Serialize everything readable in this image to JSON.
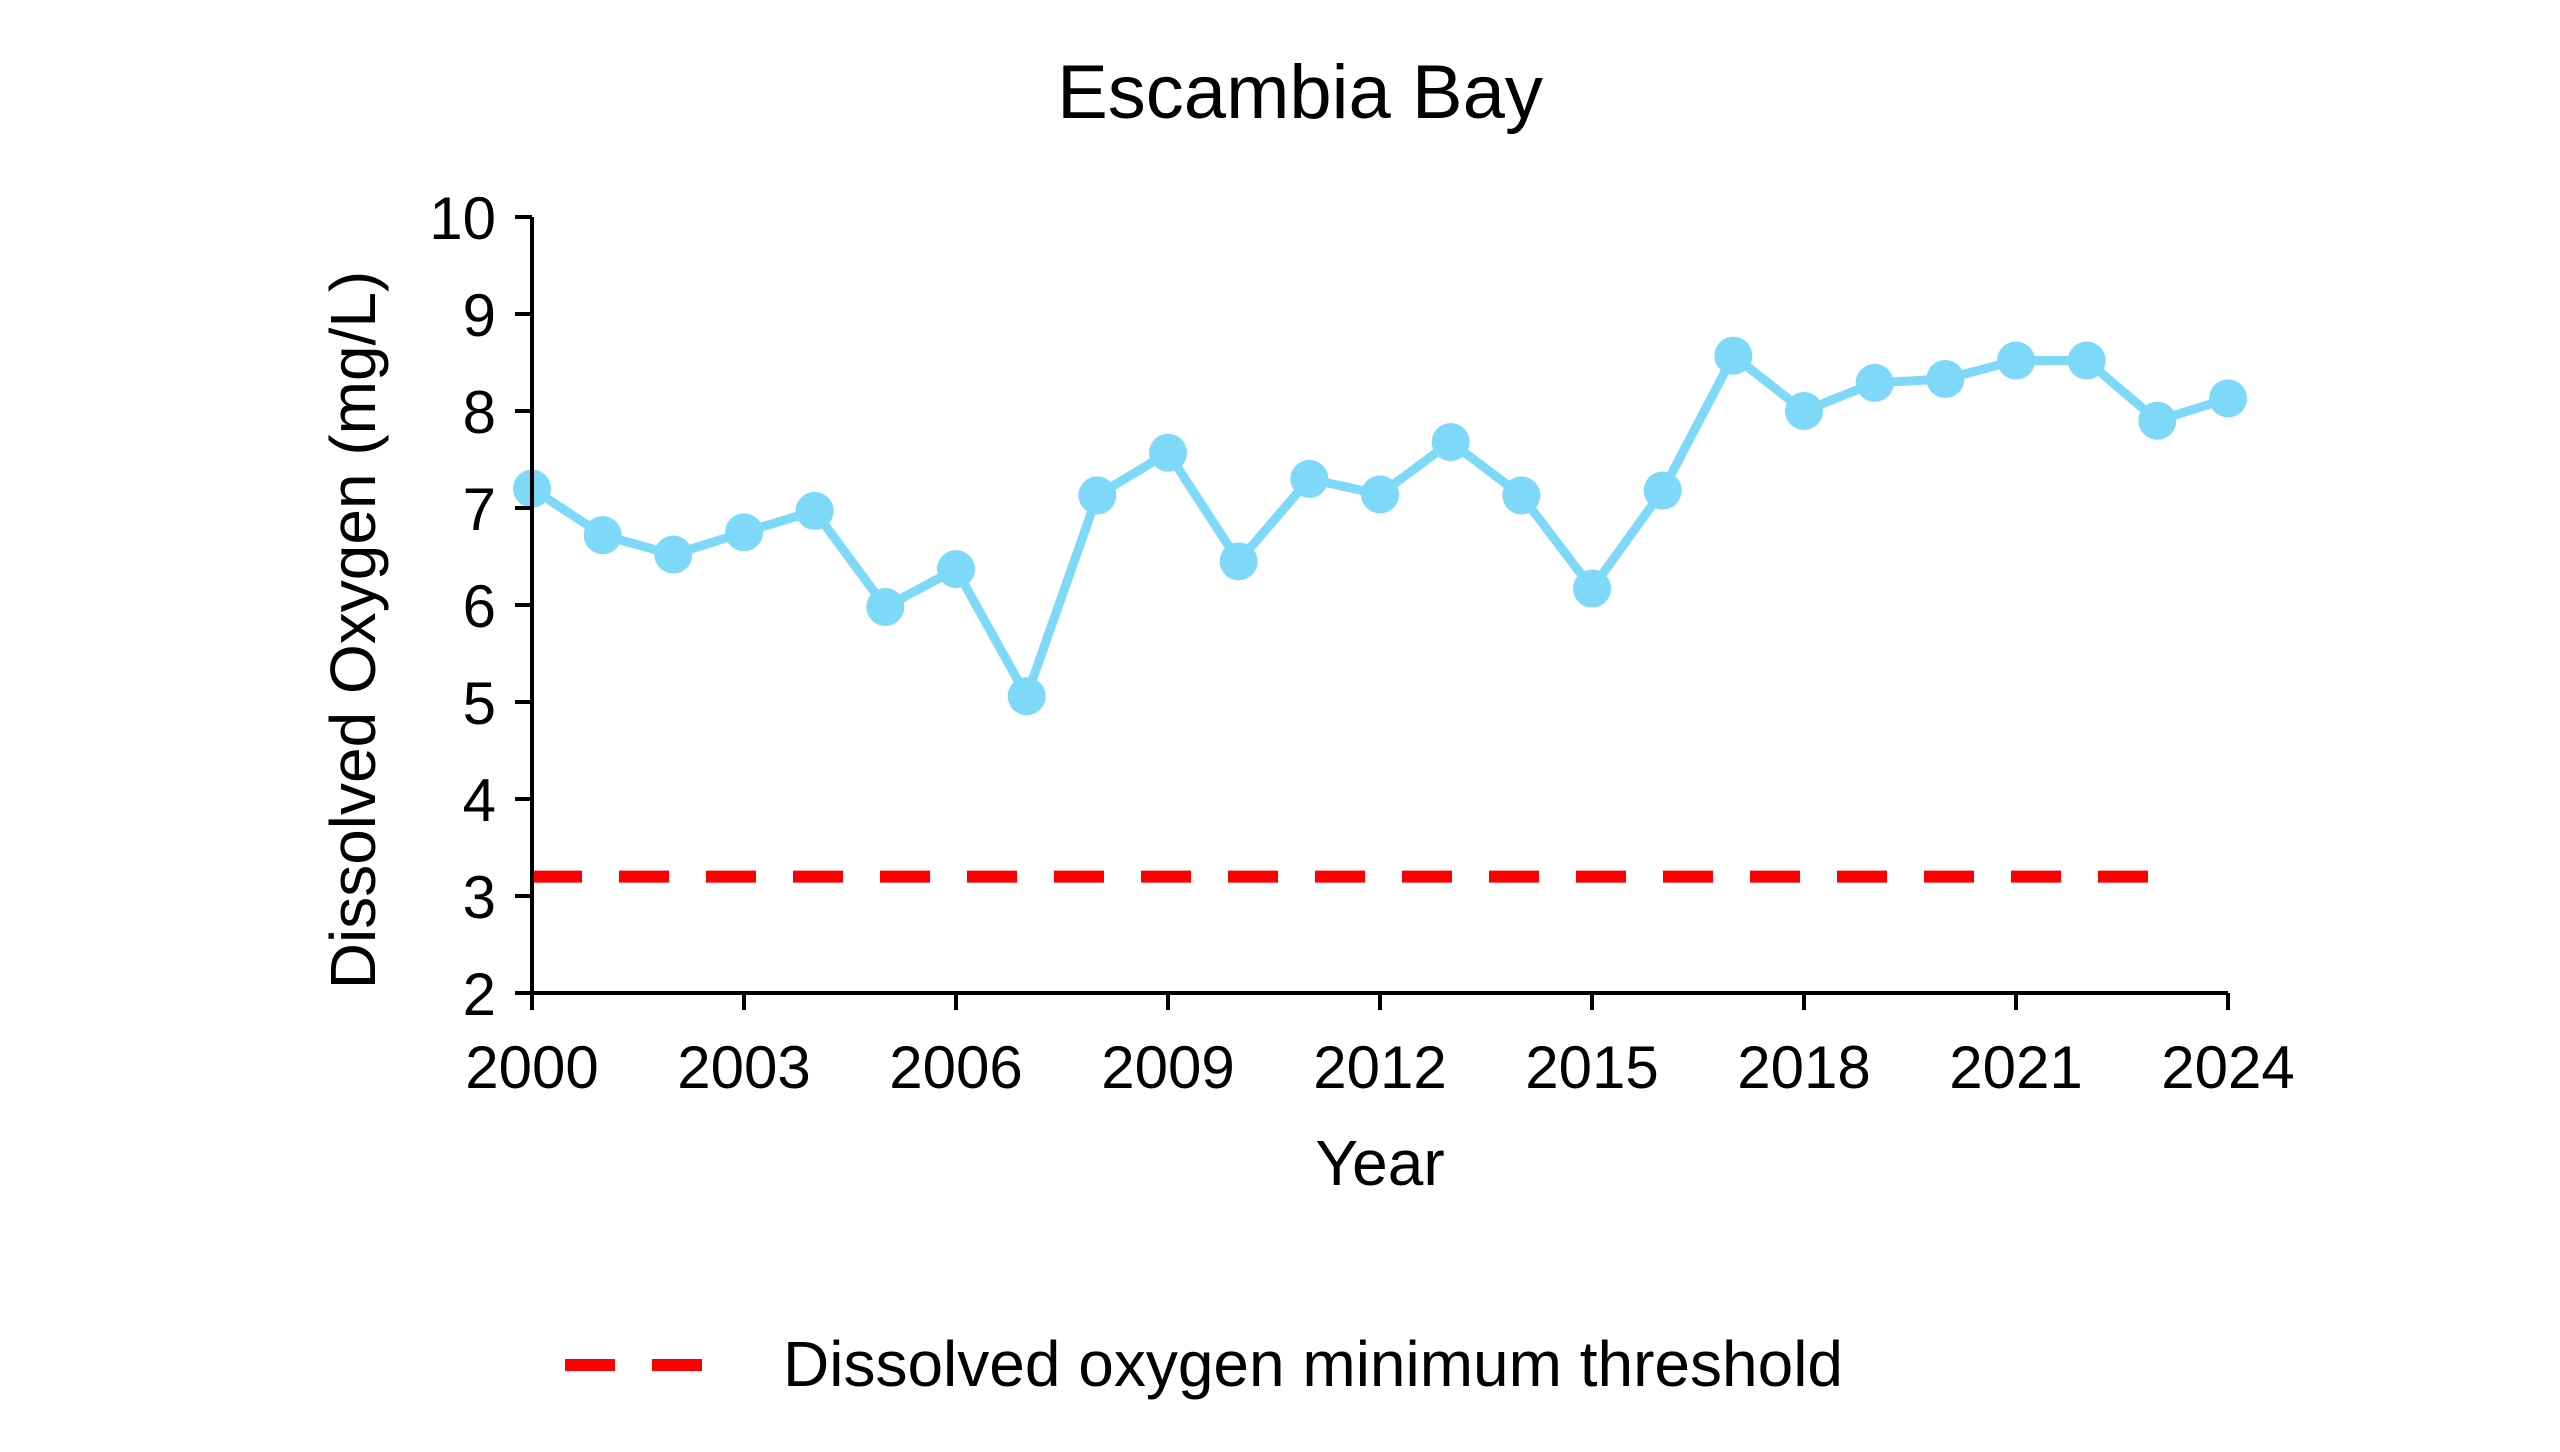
{
  "chart_data": {
    "type": "line",
    "title": "Escambia Bay",
    "xlabel": "Year",
    "ylabel": "Dissolved Oxygen (mg/L)",
    "xlim": [
      2000,
      2024
    ],
    "ylim": [
      2,
      10
    ],
    "x_ticks": [
      2000,
      2003,
      2006,
      2009,
      2012,
      2015,
      2018,
      2021,
      2024
    ],
    "y_ticks": [
      2,
      3,
      4,
      5,
      6,
      7,
      8,
      9,
      10
    ],
    "grid": false,
    "series": [
      {
        "color": "#7dd9f7",
        "marker": "circle",
        "x": [
          2000,
          2001,
          2002,
          2003,
          2004,
          2005,
          2006,
          2007,
          2008,
          2009,
          2010,
          2011,
          2012,
          2013,
          2014,
          2015,
          2016,
          2017,
          2018,
          2019,
          2020,
          2021,
          2022,
          2023,
          2024
        ],
        "y": [
          7.2,
          6.72,
          6.52,
          6.75,
          6.97,
          5.98,
          6.37,
          5.06,
          7.13,
          7.57,
          6.45,
          7.3,
          7.14,
          7.68,
          7.13,
          6.17,
          7.18,
          8.57,
          8.0,
          8.29,
          8.33,
          8.52,
          8.52,
          7.9,
          8.13
        ]
      }
    ],
    "threshold": {
      "name": "Dissolved oxygen minimum threshold",
      "value": 3.2,
      "x_start": 2000,
      "x_end": 2023,
      "color": "#ff0000",
      "style": "dashed"
    },
    "legend": {
      "placement": "bottom-center",
      "entries": [
        "Dissolved oxygen minimum threshold"
      ]
    }
  }
}
